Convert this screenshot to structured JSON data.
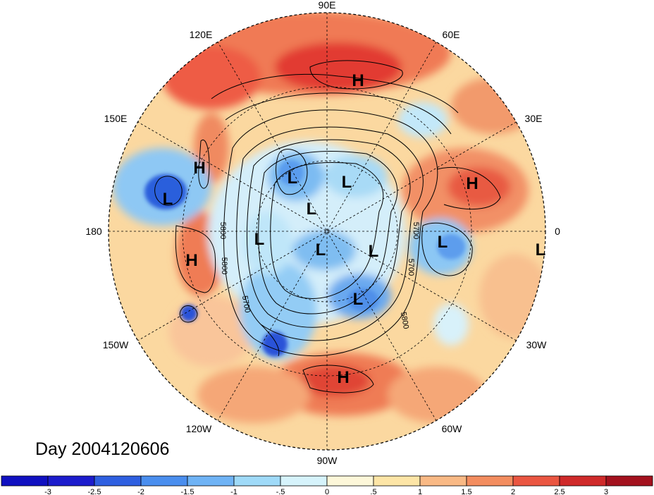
{
  "caption": "Day 2004120606",
  "projection": "north-polar-stereographic",
  "longitude_labels": [
    "90E",
    "60E",
    "30E",
    "0",
    "30W",
    "60W",
    "90W",
    "120W",
    "150W",
    "180",
    "150E",
    "120E"
  ],
  "pressure_systems": [
    {
      "label": "H"
    },
    {
      "label": "H"
    },
    {
      "label": "H"
    },
    {
      "label": "H"
    },
    {
      "label": "H"
    },
    {
      "label": "L"
    },
    {
      "label": "L"
    },
    {
      "label": "L"
    },
    {
      "label": "L"
    },
    {
      "label": "L"
    },
    {
      "label": "L"
    },
    {
      "label": "L"
    },
    {
      "label": "L"
    },
    {
      "label": "L"
    },
    {
      "label": "L"
    }
  ],
  "contour_labels": [
    "5800",
    "5800",
    "5700",
    "5700",
    "5800",
    "5700"
  ],
  "colorbar": {
    "ticks": [
      "-3",
      "-2.5",
      "-2",
      "-1.5",
      "-1",
      "-.5",
      "0",
      ".5",
      "1",
      "1.5",
      "2",
      "2.5",
      "3"
    ],
    "colors": [
      "#1c1ccc",
      "#2e5fe0",
      "#4a8eee",
      "#6fb3f5",
      "#9fdaf8",
      "#d6f3fb",
      "#fdf7d9",
      "#fde5a6",
      "#f9b985",
      "#f38d5f",
      "#ea5641",
      "#cf2a2a",
      "#a3111d"
    ]
  }
}
